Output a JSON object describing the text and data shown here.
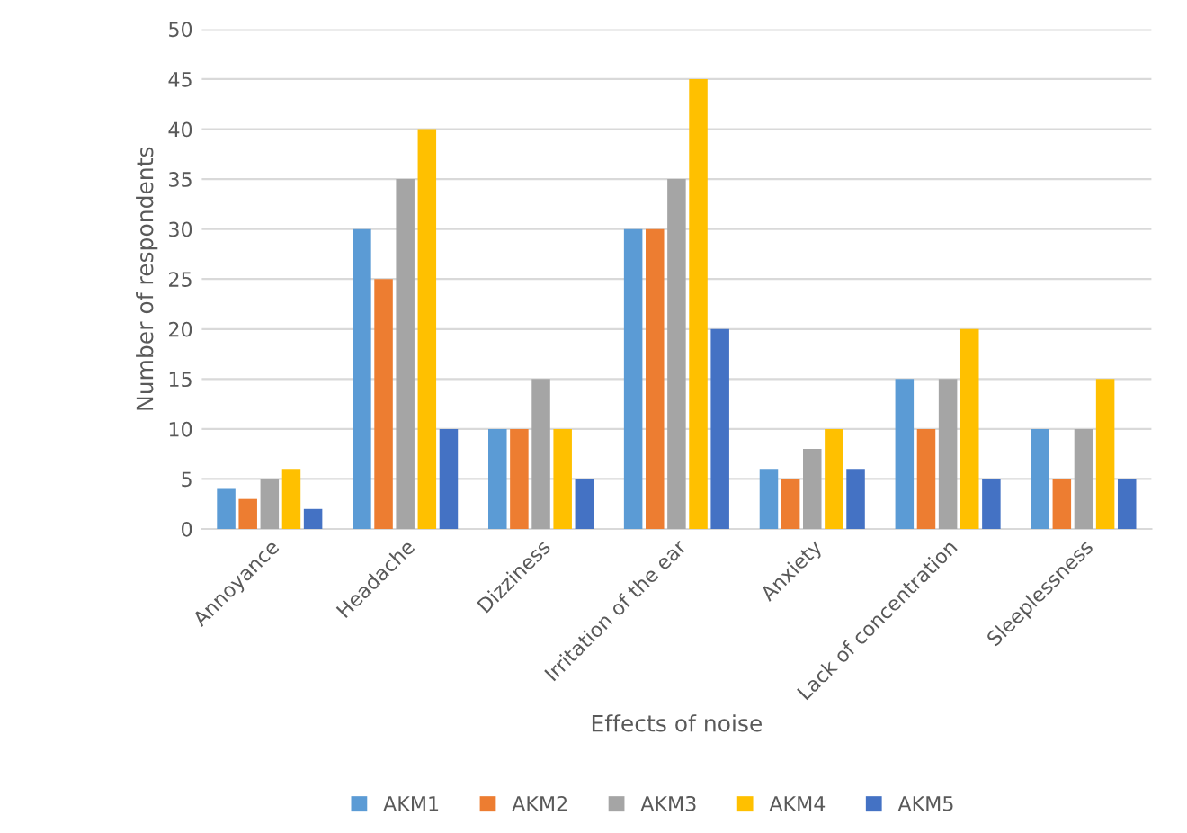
{
  "chart_data": {
    "type": "bar",
    "xlabel": "Effects of noise",
    "ylabel": "Number of respondents",
    "categories": [
      "Annoyance",
      "Headache",
      "Dizziness",
      "Irritation of the ear",
      "Anxiety",
      "Lack of concentration",
      "Sleeplessness"
    ],
    "series": [
      {
        "name": "AKM1",
        "color": "#5b9bd5",
        "values": [
          4,
          30,
          10,
          30,
          6,
          15,
          10
        ]
      },
      {
        "name": "AKM2",
        "color": "#ed7d31",
        "values": [
          3,
          25,
          10,
          30,
          5,
          10,
          5
        ]
      },
      {
        "name": "AKM3",
        "color": "#a5a5a5",
        "values": [
          5,
          35,
          15,
          35,
          8,
          15,
          10
        ]
      },
      {
        "name": "AKM4",
        "color": "#ffc000",
        "values": [
          6,
          40,
          10,
          45,
          10,
          20,
          15
        ]
      },
      {
        "name": "AKM5",
        "color": "#4472c4",
        "values": [
          2,
          10,
          5,
          20,
          6,
          5,
          5
        ]
      }
    ],
    "ylim": [
      0,
      50
    ],
    "yticks": [
      0,
      5,
      10,
      15,
      20,
      25,
      30,
      35,
      40,
      45,
      50
    ],
    "grid": "y",
    "legend": "bottom"
  }
}
